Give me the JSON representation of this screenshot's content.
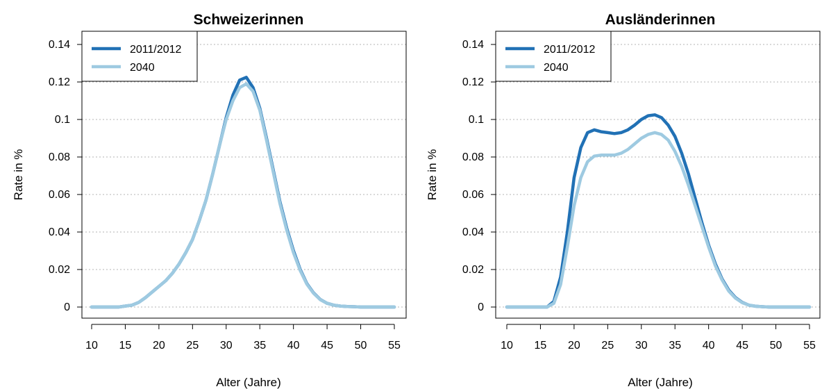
{
  "chart_data": [
    {
      "type": "line",
      "title": "Schweizerinnen",
      "xlabel": "Alter (Jahre)",
      "ylabel": "Rate in %",
      "xlim": [
        10,
        55
      ],
      "ylim": [
        0,
        0.14
      ],
      "x_ticks": [
        10,
        15,
        20,
        25,
        30,
        35,
        40,
        45,
        50,
        55
      ],
      "y_ticks": [
        0,
        0.02,
        0.04,
        0.06,
        0.08,
        0.1,
        0.12,
        0.14
      ],
      "y_tick_labels": [
        "0",
        "0.02",
        "0.04",
        "0.06",
        "0.08",
        "0.1",
        "0.12",
        "0.14"
      ],
      "grid": "horizontal dotted",
      "legend": "top-left",
      "x": [
        10,
        11,
        12,
        13,
        14,
        15,
        16,
        17,
        18,
        19,
        20,
        21,
        22,
        23,
        24,
        25,
        26,
        27,
        28,
        29,
        30,
        31,
        32,
        33,
        34,
        35,
        36,
        37,
        38,
        39,
        40,
        41,
        42,
        43,
        44,
        45,
        46,
        47,
        48,
        49,
        50,
        51,
        52,
        53,
        54,
        55
      ],
      "series": [
        {
          "name": "2011/2012",
          "color": "#2171b5",
          "values": [
            0,
            0,
            0,
            0,
            0,
            0.0005,
            0.001,
            0.0025,
            0.005,
            0.008,
            0.011,
            0.014,
            0.018,
            0.023,
            0.029,
            0.036,
            0.046,
            0.057,
            0.071,
            0.086,
            0.101,
            0.113,
            0.121,
            0.1225,
            0.117,
            0.106,
            0.09,
            0.073,
            0.056,
            0.042,
            0.03,
            0.02,
            0.0125,
            0.0075,
            0.004,
            0.002,
            0.001,
            0.0005,
            0.0003,
            0.0002,
            0,
            0,
            0,
            0,
            0,
            0
          ]
        },
        {
          "name": "2040",
          "color": "#9ecae1",
          "values": [
            0,
            0,
            0,
            0,
            0,
            0.0005,
            0.001,
            0.0025,
            0.005,
            0.008,
            0.011,
            0.014,
            0.018,
            0.023,
            0.029,
            0.036,
            0.046,
            0.057,
            0.071,
            0.086,
            0.1,
            0.11,
            0.117,
            0.119,
            0.115,
            0.105,
            0.089,
            0.072,
            0.055,
            0.041,
            0.029,
            0.0195,
            0.0122,
            0.0073,
            0.0039,
            0.002,
            0.001,
            0.0005,
            0.0003,
            0.0002,
            0,
            0,
            0,
            0,
            0,
            0
          ]
        }
      ]
    },
    {
      "type": "line",
      "title": "Ausländerinnen",
      "xlabel": "Alter (Jahre)",
      "ylabel": "Rate in %",
      "xlim": [
        10,
        55
      ],
      "ylim": [
        0,
        0.14
      ],
      "x_ticks": [
        10,
        15,
        20,
        25,
        30,
        35,
        40,
        45,
        50,
        55
      ],
      "y_ticks": [
        0,
        0.02,
        0.04,
        0.06,
        0.08,
        0.1,
        0.12,
        0.14
      ],
      "y_tick_labels": [
        "0",
        "0.02",
        "0.04",
        "0.06",
        "0.08",
        "0.1",
        "0.12",
        "0.14"
      ],
      "grid": "horizontal dotted",
      "legend": "top-left",
      "x": [
        10,
        11,
        12,
        13,
        14,
        15,
        16,
        17,
        18,
        19,
        20,
        21,
        22,
        23,
        24,
        25,
        26,
        27,
        28,
        29,
        30,
        31,
        32,
        33,
        34,
        35,
        36,
        37,
        38,
        39,
        40,
        41,
        42,
        43,
        44,
        45,
        46,
        47,
        48,
        49,
        50,
        51,
        52,
        53,
        54,
        55
      ],
      "series": [
        {
          "name": "2011/2012",
          "color": "#2171b5",
          "values": [
            0,
            0,
            0,
            0,
            0,
            0,
            0,
            0.003,
            0.016,
            0.04,
            0.069,
            0.085,
            0.093,
            0.0945,
            0.0935,
            0.093,
            0.0925,
            0.093,
            0.0945,
            0.097,
            0.1,
            0.102,
            0.1025,
            0.101,
            0.097,
            0.091,
            0.082,
            0.071,
            0.058,
            0.045,
            0.033,
            0.023,
            0.015,
            0.009,
            0.005,
            0.0025,
            0.001,
            0.0004,
            0.0002,
            0,
            0,
            0,
            0,
            0,
            0,
            0
          ]
        },
        {
          "name": "2040",
          "color": "#9ecae1",
          "values": [
            0,
            0,
            0,
            0,
            0,
            0,
            0,
            0.002,
            0.012,
            0.032,
            0.054,
            0.069,
            0.0775,
            0.0805,
            0.081,
            0.081,
            0.081,
            0.082,
            0.084,
            0.087,
            0.09,
            0.092,
            0.093,
            0.092,
            0.089,
            0.083,
            0.075,
            0.065,
            0.054,
            0.043,
            0.032,
            0.022,
            0.0145,
            0.0085,
            0.0047,
            0.0023,
            0.001,
            0.0004,
            0.0002,
            0,
            0,
            0,
            0,
            0,
            0,
            0
          ]
        }
      ]
    }
  ]
}
